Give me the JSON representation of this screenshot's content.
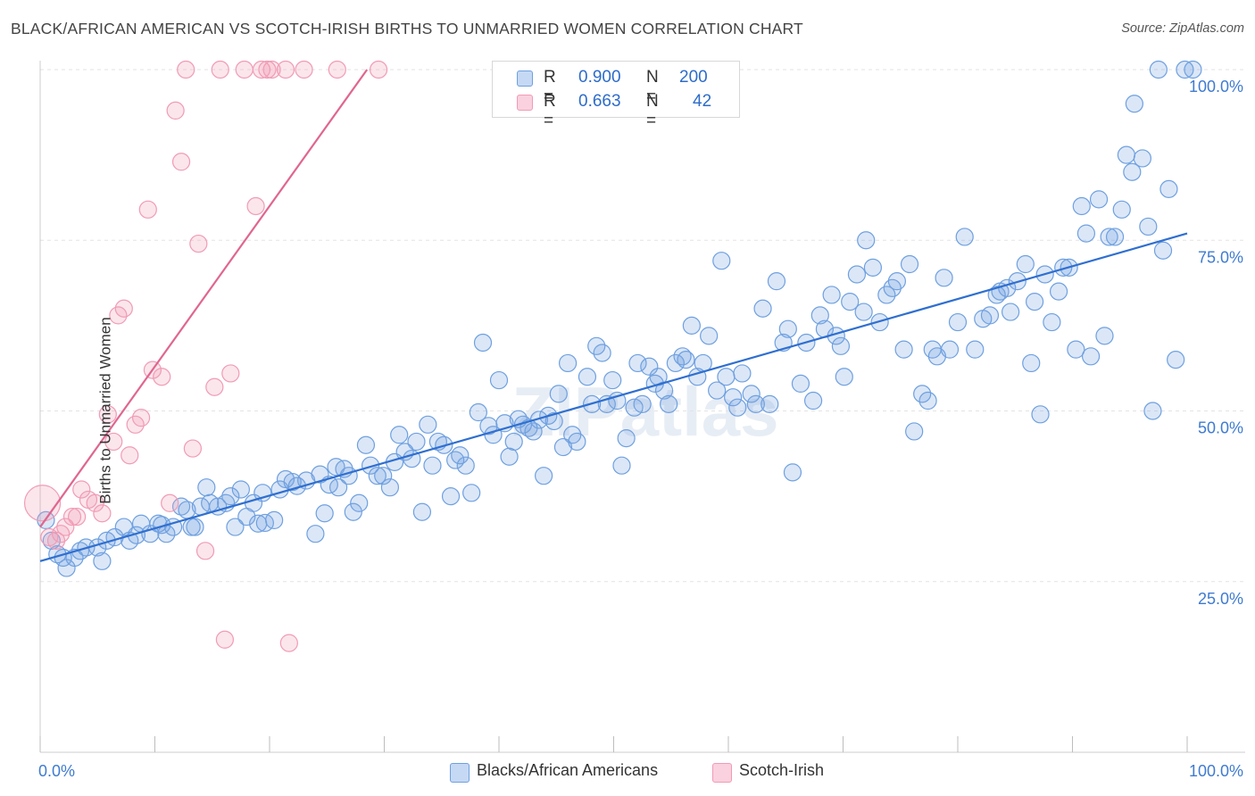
{
  "title": "BLACK/AFRICAN AMERICAN VS SCOTCH-IRISH BIRTHS TO UNMARRIED WOMEN CORRELATION CHART",
  "source": "Source: ZipAtlas.com",
  "watermark": "ZIPatlas",
  "legend": {
    "r_label": "R =",
    "n_label": "N =",
    "rows": [
      {
        "r": "0.900",
        "n": "200",
        "color": "#6fa0e0"
      },
      {
        "r": "0.663",
        "n": "42",
        "color": "#f19bb5"
      }
    ]
  },
  "bottom_legend": [
    {
      "label": "Blacks/African Americans",
      "color": "#6fa0e0"
    },
    {
      "label": "Scotch-Irish",
      "color": "#f19bb5"
    }
  ],
  "chart_data": {
    "type": "scatter",
    "xlabel": "",
    "ylabel": "Births to Unmarried Women",
    "xlim": [
      0,
      100
    ],
    "ylim": [
      0,
      100
    ],
    "x_tick_labels": [
      "0.0%",
      "100.0%"
    ],
    "y_tick_labels": [
      "25.0%",
      "50.0%",
      "75.0%",
      "100.0%"
    ],
    "y_ticks": [
      25,
      50,
      75,
      100
    ],
    "series": [
      {
        "name": "Blacks/African Americans",
        "color": "#6fa0e0",
        "trend": {
          "x": [
            0,
            100
          ],
          "y": [
            28,
            76
          ]
        },
        "points": [
          [
            0.5,
            34
          ],
          [
            1,
            31
          ],
          [
            1.5,
            29
          ],
          [
            2,
            28.5
          ],
          [
            2.3,
            27
          ],
          [
            3,
            28.5
          ],
          [
            3.5,
            29.5
          ],
          [
            4,
            30
          ],
          [
            5,
            30
          ],
          [
            5.4,
            28
          ],
          [
            5.8,
            31
          ],
          [
            6.5,
            31.5
          ],
          [
            7.3,
            33
          ],
          [
            7.8,
            31
          ],
          [
            8.4,
            31.8
          ],
          [
            8.8,
            33.5
          ],
          [
            9.6,
            32
          ],
          [
            10.3,
            33.5
          ],
          [
            10.6,
            33.3
          ],
          [
            11,
            32
          ],
          [
            11.6,
            33
          ],
          [
            12.3,
            36
          ],
          [
            12.8,
            35.5
          ],
          [
            13.2,
            33
          ],
          [
            13.5,
            33
          ],
          [
            14,
            36
          ],
          [
            14.5,
            38.8
          ],
          [
            14.8,
            36.5
          ],
          [
            15.5,
            36
          ],
          [
            16.2,
            36.5
          ],
          [
            16.6,
            37.5
          ],
          [
            17,
            33
          ],
          [
            17.5,
            38.5
          ],
          [
            18,
            34.5
          ],
          [
            18.6,
            36.5
          ],
          [
            19,
            33.5
          ],
          [
            19.4,
            38
          ],
          [
            19.6,
            33.6
          ],
          [
            20.4,
            34
          ],
          [
            20.9,
            38.5
          ],
          [
            21.4,
            40
          ],
          [
            22,
            39.6
          ],
          [
            22.4,
            39
          ],
          [
            23.2,
            39.8
          ],
          [
            24,
            32
          ],
          [
            24.4,
            40.7
          ],
          [
            24.8,
            35
          ],
          [
            25.2,
            39.2
          ],
          [
            25.8,
            41.8
          ],
          [
            26,
            38.8
          ],
          [
            26.5,
            41.5
          ],
          [
            26.9,
            40.5
          ],
          [
            27.3,
            35.2
          ],
          [
            27.8,
            36.5
          ],
          [
            28.4,
            45
          ],
          [
            28.8,
            42
          ],
          [
            29.4,
            40.5
          ],
          [
            29.9,
            40.5
          ],
          [
            30.5,
            38.8
          ],
          [
            30.9,
            42.5
          ],
          [
            31.3,
            46.5
          ],
          [
            31.8,
            44
          ],
          [
            32.4,
            43
          ],
          [
            32.8,
            45.5
          ],
          [
            33.3,
            35.2
          ],
          [
            33.8,
            48
          ],
          [
            34.2,
            42
          ],
          [
            34.7,
            45.5
          ],
          [
            35.2,
            45
          ],
          [
            35.8,
            37.5
          ],
          [
            36.2,
            42.8
          ],
          [
            36.6,
            43.5
          ],
          [
            37.1,
            42
          ],
          [
            37.6,
            38
          ],
          [
            38.2,
            49.8
          ],
          [
            38.6,
            60
          ],
          [
            39.1,
            47.8
          ],
          [
            39.5,
            46.5
          ],
          [
            40,
            54.5
          ],
          [
            40.5,
            48.2
          ],
          [
            40.9,
            43.3
          ],
          [
            41.3,
            45.5
          ],
          [
            41.7,
            48.8
          ],
          [
            42.1,
            48
          ],
          [
            42.6,
            47.5
          ],
          [
            43,
            47
          ],
          [
            43.5,
            48.7
          ],
          [
            43.9,
            40.5
          ],
          [
            44.3,
            49.3
          ],
          [
            44.8,
            48.5
          ],
          [
            45.2,
            52.5
          ],
          [
            45.6,
            44.7
          ],
          [
            46,
            57
          ],
          [
            46.4,
            46.5
          ],
          [
            46.8,
            45.5
          ],
          [
            47.7,
            55
          ],
          [
            48.1,
            51
          ],
          [
            48.5,
            59.5
          ],
          [
            49,
            58.5
          ],
          [
            49.4,
            51
          ],
          [
            49.9,
            54.5
          ],
          [
            50.3,
            51.5
          ],
          [
            50.7,
            42
          ],
          [
            51.1,
            46
          ],
          [
            51.8,
            50.5
          ],
          [
            52.1,
            57
          ],
          [
            52.5,
            51
          ],
          [
            53.1,
            56.5
          ],
          [
            53.6,
            54
          ],
          [
            53.9,
            55
          ],
          [
            54.4,
            53
          ],
          [
            54.8,
            51
          ],
          [
            55.4,
            57
          ],
          [
            56,
            58
          ],
          [
            56.3,
            57.5
          ],
          [
            56.8,
            62.5
          ],
          [
            57.3,
            55
          ],
          [
            57.8,
            57
          ],
          [
            58.3,
            61
          ],
          [
            59,
            53
          ],
          [
            59.4,
            72
          ],
          [
            59.8,
            55
          ],
          [
            60.4,
            52
          ],
          [
            60.8,
            50.5
          ],
          [
            61.2,
            55.5
          ],
          [
            62,
            52.5
          ],
          [
            62.4,
            51
          ],
          [
            63,
            65
          ],
          [
            63.6,
            51
          ],
          [
            64.2,
            69
          ],
          [
            64.8,
            60
          ],
          [
            65.2,
            62
          ],
          [
            65.6,
            41
          ],
          [
            66.3,
            54
          ],
          [
            66.8,
            60
          ],
          [
            67.4,
            51.5
          ],
          [
            68,
            64
          ],
          [
            68.4,
            62
          ],
          [
            69,
            67
          ],
          [
            69.4,
            61
          ],
          [
            69.8,
            59.5
          ],
          [
            70.1,
            55
          ],
          [
            70.6,
            66
          ],
          [
            71.2,
            70
          ],
          [
            71.8,
            64.5
          ],
          [
            72,
            75
          ],
          [
            72.6,
            71
          ],
          [
            73.2,
            63
          ],
          [
            73.8,
            67
          ],
          [
            74.3,
            68
          ],
          [
            74.7,
            69
          ],
          [
            75.3,
            59
          ],
          [
            75.8,
            71.5
          ],
          [
            76.2,
            47
          ],
          [
            76.9,
            52.5
          ],
          [
            77.4,
            51.5
          ],
          [
            77.8,
            59
          ],
          [
            78.2,
            58
          ],
          [
            78.8,
            69.5
          ],
          [
            79.3,
            59
          ],
          [
            80,
            63
          ],
          [
            80.6,
            75.5
          ],
          [
            81.5,
            59
          ],
          [
            82.2,
            63.5
          ],
          [
            82.8,
            64
          ],
          [
            83.4,
            67
          ],
          [
            83.7,
            67.5
          ],
          [
            84.3,
            68
          ],
          [
            84.6,
            64.5
          ],
          [
            85.2,
            69
          ],
          [
            85.9,
            71.5
          ],
          [
            86.4,
            57
          ],
          [
            86.7,
            66
          ],
          [
            87.2,
            49.5
          ],
          [
            87.6,
            70
          ],
          [
            88.2,
            63
          ],
          [
            88.8,
            67.5
          ],
          [
            89.2,
            71
          ],
          [
            89.7,
            71
          ],
          [
            90.3,
            59
          ],
          [
            90.8,
            80
          ],
          [
            91.2,
            76
          ],
          [
            91.6,
            58
          ],
          [
            92.3,
            81
          ],
          [
            92.8,
            61
          ],
          [
            93.2,
            75.5
          ],
          [
            93.7,
            75.5
          ],
          [
            94.3,
            79.5
          ],
          [
            94.7,
            87.5
          ],
          [
            95.2,
            85
          ],
          [
            95.4,
            95
          ],
          [
            96.1,
            87
          ],
          [
            96.6,
            77
          ],
          [
            97,
            50
          ],
          [
            97.5,
            100
          ],
          [
            97.9,
            73.5
          ],
          [
            98.4,
            82.5
          ],
          [
            99,
            57.5
          ],
          [
            99.8,
            100
          ],
          [
            100.5,
            100
          ]
        ]
      },
      {
        "name": "Scotch-Irish",
        "color": "#f19bb5",
        "trend": {
          "x": [
            0,
            28.5
          ],
          "y": [
            33,
            100
          ]
        },
        "points": [
          [
            0.2,
            36.5
          ],
          [
            0.8,
            31.5
          ],
          [
            1.4,
            31
          ],
          [
            1.8,
            32
          ],
          [
            2.2,
            33
          ],
          [
            2.8,
            34.5
          ],
          [
            3.2,
            34.5
          ],
          [
            3.6,
            38.5
          ],
          [
            4.2,
            37
          ],
          [
            4.8,
            36.5
          ],
          [
            5.4,
            35
          ],
          [
            5.9,
            49.5
          ],
          [
            6.4,
            45.5
          ],
          [
            6.8,
            64
          ],
          [
            7.3,
            65
          ],
          [
            7.8,
            43.5
          ],
          [
            8.3,
            48
          ],
          [
            8.8,
            49
          ],
          [
            9.4,
            79.5
          ],
          [
            9.8,
            56
          ],
          [
            10.6,
            55
          ],
          [
            11.3,
            36.5
          ],
          [
            11.8,
            94
          ],
          [
            12.3,
            86.5
          ],
          [
            12.7,
            100
          ],
          [
            13.3,
            44.5
          ],
          [
            13.8,
            74.5
          ],
          [
            14.4,
            29.5
          ],
          [
            15.2,
            53.5
          ],
          [
            15.7,
            100
          ],
          [
            16.1,
            16.5
          ],
          [
            16.6,
            55.5
          ],
          [
            17.8,
            100
          ],
          [
            18.8,
            80
          ],
          [
            19.3,
            100
          ],
          [
            19.8,
            100
          ],
          [
            20.2,
            100
          ],
          [
            21.4,
            100
          ],
          [
            21.7,
            16
          ],
          [
            23,
            100
          ],
          [
            25.9,
            100
          ],
          [
            29.5,
            100
          ]
        ]
      }
    ]
  }
}
